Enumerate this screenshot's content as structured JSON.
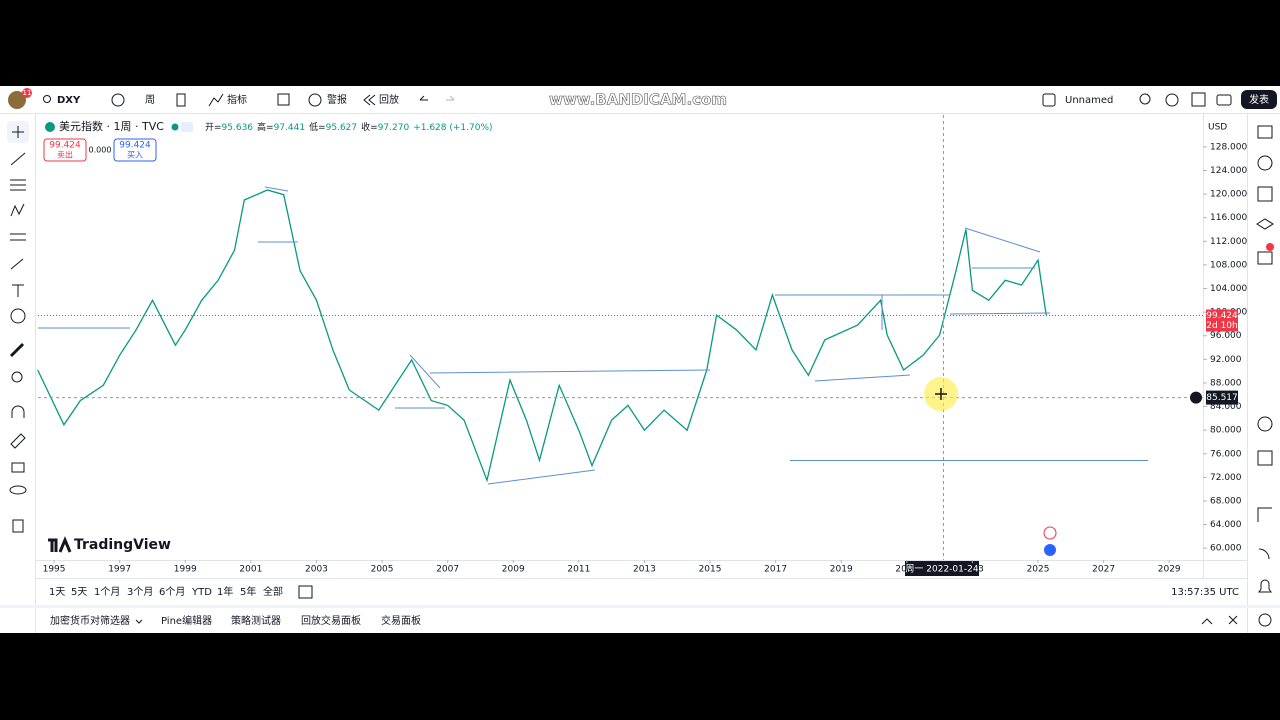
{
  "toolbar": {
    "badge": "11",
    "symbol": "DXY",
    "interval": "周",
    "indicators": "指标",
    "alert": "警报",
    "replay": "回放",
    "layout": "Unnamed",
    "publish": "发表"
  },
  "header": {
    "title": "美元指数 · 1周 · TVC",
    "ohlc": [
      {
        "label": "开=",
        "value": "95.636"
      },
      {
        "label": "高=",
        "value": "97.441"
      },
      {
        "label": "低=",
        "value": "95.627"
      },
      {
        "label": "收=",
        "value": "97.270"
      }
    ],
    "change": "+1.628 (+1.70%)",
    "sell_price": "99.424",
    "sell": "卖出",
    "spread": "0.000",
    "buy_price": "99.424",
    "buy": "买入"
  },
  "chart_data": {
    "type": "line",
    "color": "#089981",
    "x": [
      1994.5,
      1995.3,
      1995.8,
      1996.5,
      1997.0,
      1997.5,
      1998.0,
      1998.7,
      1999.0,
      1999.5,
      2000.0,
      2000.5,
      2000.8,
      2001.5,
      2002.0,
      2002.5,
      2003.0,
      2003.5,
      2004.0,
      2004.9,
      2005.9,
      2006.5,
      2007.0,
      2007.5,
      2008.2,
      2008.9,
      2009.4,
      2009.8,
      2010.4,
      2011.0,
      2011.4,
      2012.0,
      2012.5,
      2013.0,
      2013.6,
      2014.3,
      2014.9,
      2015.2,
      2015.8,
      2016.4,
      2016.9,
      2017.5,
      2018.0,
      2018.5,
      2019.5,
      2020.2,
      2020.4,
      2020.9,
      2021.5,
      2022.0,
      2022.5,
      2022.8,
      2023.0,
      2023.5,
      2024.0,
      2024.5,
      2025.0,
      2025.25
    ],
    "values": [
      90.2,
      80.9,
      85.0,
      87.6,
      92.7,
      97.0,
      102.0,
      94.4,
      97.0,
      102.0,
      105.4,
      110.5,
      119.0,
      120.7,
      119.9,
      107.0,
      102.0,
      93.6,
      86.8,
      83.4,
      91.9,
      85.0,
      84.2,
      81.7,
      71.5,
      88.5,
      81.7,
      74.9,
      87.6,
      80.0,
      74.0,
      81.7,
      84.2,
      80.0,
      83.4,
      80.0,
      90.2,
      99.5,
      97.0,
      93.6,
      102.9,
      93.6,
      89.3,
      95.3,
      97.8,
      102.0,
      96.1,
      90.2,
      92.7,
      96.1,
      107.0,
      114.0,
      103.7,
      102.0,
      105.4,
      104.6,
      108.8,
      99.5
    ],
    "xlim": [
      1994.51,
      2030.03
    ],
    "ylim": [
      58,
      133.4
    ],
    "xticks": [
      1995,
      1997,
      1999,
      2001,
      2003,
      2005,
      2007,
      2009,
      2011,
      2013,
      2015,
      2017,
      2019,
      2021,
      2023,
      2025,
      2027,
      2029
    ],
    "yticks": [
      {
        "value": 60,
        "label": "60.000"
      },
      {
        "value": 64,
        "label": "64.000"
      },
      {
        "value": 68,
        "label": "68.000"
      },
      {
        "value": 72,
        "label": "72.000"
      },
      {
        "value": 76,
        "label": "76.000"
      },
      {
        "value": 80,
        "label": "80.000"
      },
      {
        "value": 84,
        "label": "84.000"
      },
      {
        "value": 88,
        "label": "88.000"
      },
      {
        "value": 92,
        "label": "92.000"
      },
      {
        "value": 96,
        "label": "96.000"
      },
      {
        "value": 100,
        "label": "100.000"
      },
      {
        "value": 104,
        "label": "104.000"
      },
      {
        "value": 108,
        "label": "108.000"
      },
      {
        "value": 112,
        "label": "112.000"
      },
      {
        "value": 116,
        "label": "116.000"
      },
      {
        "value": 120,
        "label": "120.000"
      },
      {
        "value": 124,
        "label": "124.000"
      },
      {
        "value": 128,
        "label": "128.000"
      }
    ],
    "currency": "USD",
    "last_price": {
      "value": 99.424,
      "label": "99.424"
    },
    "countdown": "2d 10h",
    "crosshair_price": {
      "value": 85.517,
      "label": "85.517"
    },
    "crosshair_date": "周一 2022-01-24",
    "watermark": "TradingView"
  },
  "range_bar": [
    "1天",
    "5天",
    "1个月",
    "3个月",
    "6个月",
    "YTD",
    "1年",
    "5年",
    "全部"
  ],
  "clock": "13:57:35 UTC",
  "panel_tabs": [
    "加密货币对筛选器",
    "Pine编辑器",
    "策略测试器",
    "回放交易面板",
    "交易面板"
  ],
  "recorder": "www.BANDICAM.com"
}
